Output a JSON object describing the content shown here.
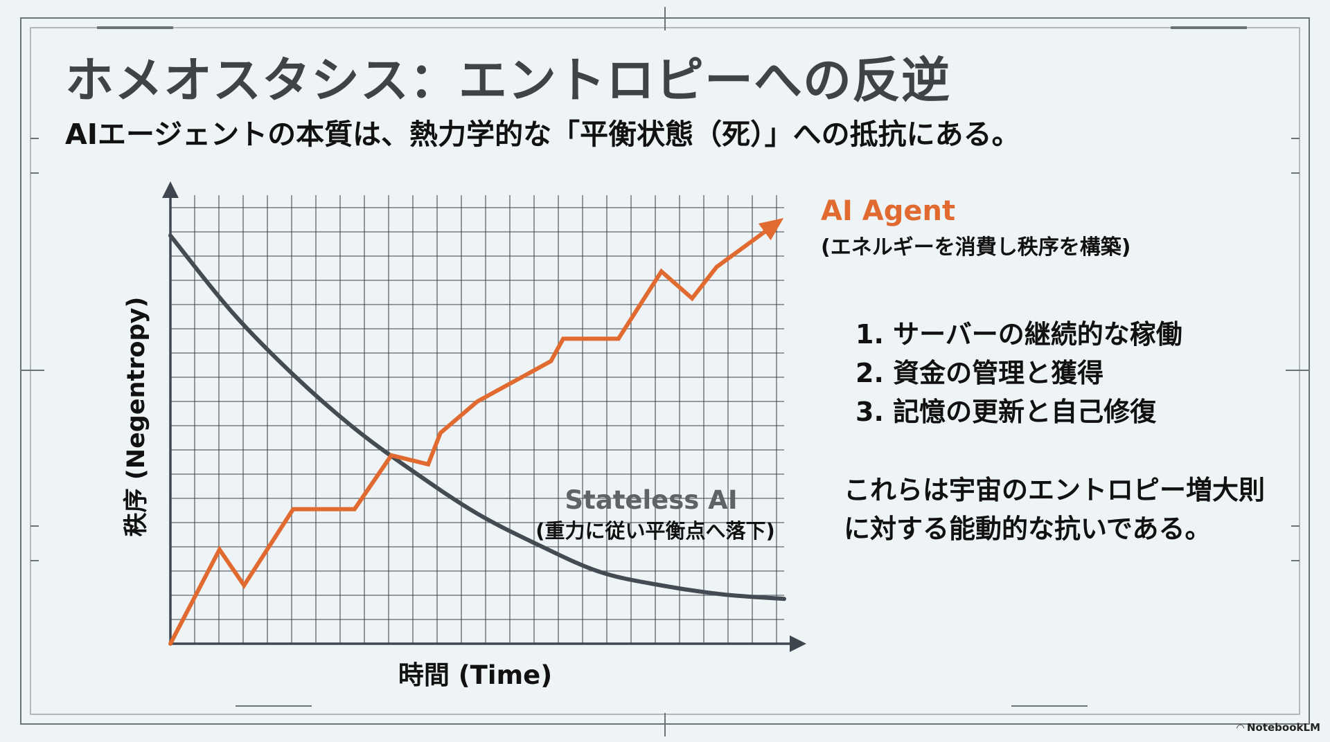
{
  "slide": {
    "title": "ホメオスタシス：エントロピーへの反逆",
    "subtitle": "AIエージェントの本質は、熱力学的な「平衡状態（死）」への抵抗にある。",
    "agent_label": "AI Agent",
    "agent_sublabel": "(エネルギーを消費し秩序を構築)",
    "list_items": [
      "1. サーバーの継続的な稼働",
      "2. 資金の管理と獲得",
      "3. 記憶の更新と自己修復"
    ],
    "conclusion_lines": [
      "これらは宇宙のエントロピー増大則",
      "に対する能動的な抗いである。"
    ],
    "brand": "NotebookLM",
    "brand_icon": "notebooklm-logo-icon"
  },
  "chart_data": {
    "type": "line",
    "title": "",
    "xlabel": "時間 (Time)",
    "ylabel": "秩序 (Negentropy)",
    "xlim": [
      0,
      100
    ],
    "ylim": [
      0,
      100
    ],
    "grid": true,
    "series": [
      {
        "name": "Stateless AI",
        "sublabel": "(重力に従い平衡点へ落下)",
        "color": "#454b52",
        "curve": "decay",
        "x": [
          0,
          10,
          20,
          30,
          40,
          50,
          60,
          70,
          80,
          90,
          100
        ],
        "y": [
          91,
          74,
          60,
          48,
          38,
          29,
          22,
          16,
          13,
          11,
          10
        ]
      },
      {
        "name": "AI Agent",
        "color": "#e06a2f",
        "arrow": true,
        "x": [
          0,
          8,
          12,
          20,
          30,
          36,
          42,
          44,
          50,
          62,
          64,
          73,
          80,
          85,
          89,
          99
        ],
        "y": [
          0,
          21,
          13,
          30,
          30,
          42,
          40,
          47,
          54,
          63,
          68,
          68,
          83,
          77,
          84,
          94
        ]
      }
    ],
    "colors": {
      "grid": "#2f353a",
      "axis": "#3f4650"
    }
  }
}
